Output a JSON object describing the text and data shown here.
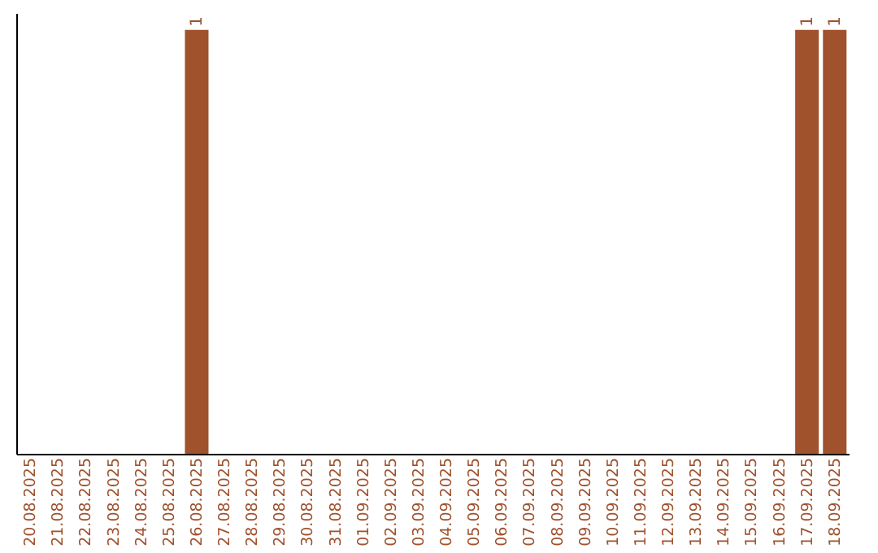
{
  "chart_data": {
    "type": "bar",
    "categories": [
      "20.08.2025",
      "21.08.2025",
      "22.08.2025",
      "23.08.2025",
      "24.08.2025",
      "25.08.2025",
      "26.08.2025",
      "27.08.2025",
      "28.08.2025",
      "29.08.2025",
      "30.08.2025",
      "31.08.2025",
      "01.09.2025",
      "02.09.2025",
      "03.09.2025",
      "04.09.2025",
      "05.09.2025",
      "06.09.2025",
      "07.09.2025",
      "08.09.2025",
      "09.09.2025",
      "10.09.2025",
      "11.09.2025",
      "12.09.2025",
      "13.09.2025",
      "14.09.2025",
      "15.09.2025",
      "16.09.2025",
      "17.09.2025",
      "18.09.2025"
    ],
    "values": [
      0,
      0,
      0,
      0,
      0,
      0,
      1,
      0,
      0,
      0,
      0,
      0,
      0,
      0,
      0,
      0,
      0,
      0,
      0,
      0,
      0,
      0,
      0,
      0,
      0,
      0,
      0,
      0,
      1,
      1
    ],
    "value_labels": [
      null,
      null,
      null,
      null,
      null,
      null,
      "1",
      null,
      null,
      null,
      null,
      null,
      null,
      null,
      null,
      null,
      null,
      null,
      null,
      null,
      null,
      null,
      null,
      null,
      null,
      null,
      null,
      null,
      "1",
      "1"
    ],
    "color": "#a0522d",
    "ylim": [
      0,
      1.04
    ],
    "grid": false,
    "tick_labels": "x"
  }
}
